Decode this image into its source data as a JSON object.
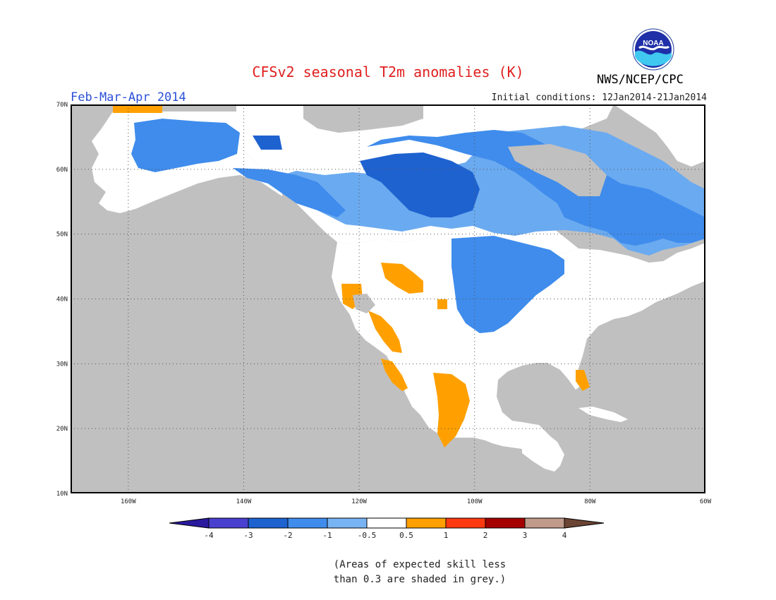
{
  "title": "CFSv2 seasonal T2m anomalies (K)",
  "period": "Feb-Mar-Apr 2014",
  "initial_conditions": "Initial conditions: 12Jan2014-21Jan2014",
  "org": "NWS/NCEP/CPC",
  "logo_text": "NOAA",
  "lat_labels": [
    "70N",
    "60N",
    "50N",
    "40N",
    "30N",
    "20N",
    "10N"
  ],
  "lon_labels": [
    "160W",
    "140W",
    "120W",
    "100W",
    "80W",
    "60W"
  ],
  "colorbar": {
    "ticks": [
      "-4",
      "-3",
      "-2",
      "-1",
      "-0.5",
      "0.5",
      "1",
      "2",
      "3",
      "4"
    ],
    "colors": [
      "#2a1a9e",
      "#4a40d0",
      "#1e62d0",
      "#3f8cec",
      "#78b4f4",
      "#ffffff",
      "#ffa000",
      "#ff3a10",
      "#a50000",
      "#c09a8a",
      "#6b4433"
    ]
  },
  "colors": {
    "no_skill": "#c0c0c0",
    "ocean": "#c0c0c0",
    "cold_1": "#6aaaf0",
    "cold_2": "#3f8cec",
    "cold_3": "#1e62d0",
    "neutral": "#ffffff",
    "warm_1": "#ffa000"
  },
  "footnote": {
    "line1": "(Areas of expected skill less",
    "line2": "than 0.3 are shaded in grey.)"
  }
}
